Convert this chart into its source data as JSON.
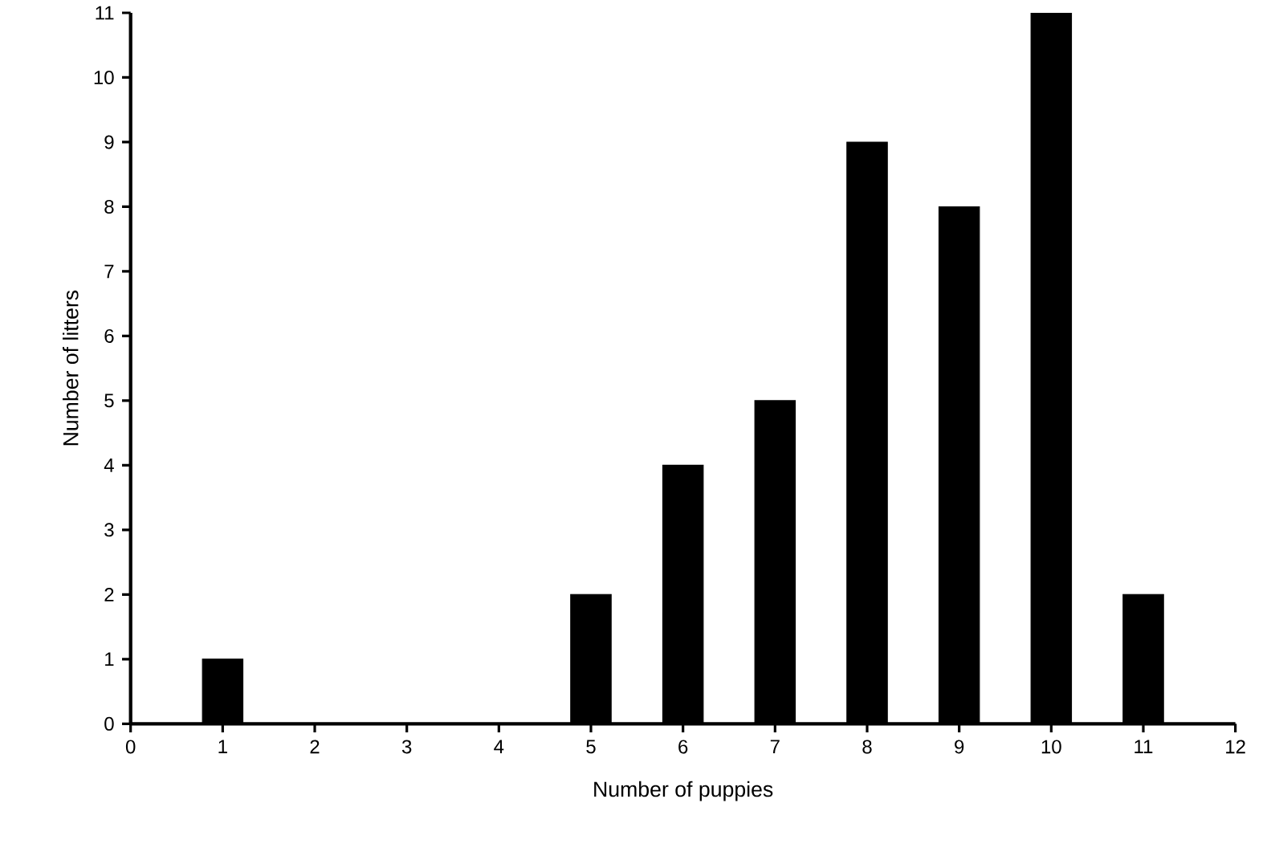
{
  "chart_data": {
    "type": "bar",
    "xlabel": "Number of puppies",
    "ylabel": "Number of litters",
    "x": [
      1,
      5,
      6,
      7,
      8,
      9,
      10,
      11
    ],
    "values": [
      1,
      2,
      4,
      5,
      9,
      8,
      11,
      2
    ],
    "color": "#000000",
    "xlim": [
      0,
      12
    ],
    "xticks": [
      0,
      1,
      2,
      3,
      4,
      5,
      6,
      7,
      8,
      9,
      10,
      11,
      12
    ],
    "ylim": [
      0,
      11
    ],
    "yticks": [
      0,
      1,
      2,
      3,
      4,
      5,
      6,
      7,
      8,
      9,
      10,
      11
    ]
  }
}
